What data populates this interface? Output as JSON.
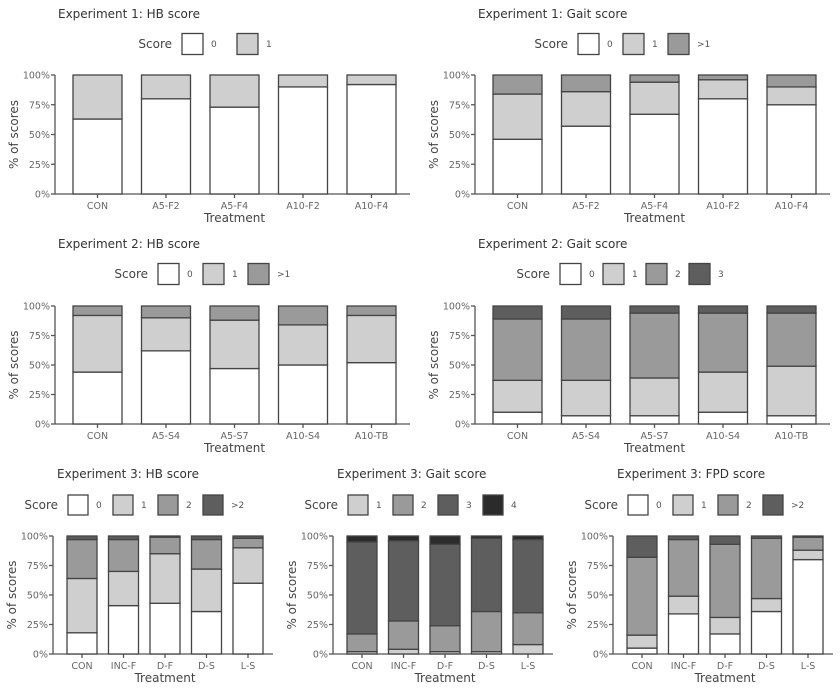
{
  "figure": {
    "colors": {
      "white": "#ffffff",
      "light": "#cfcfcf",
      "medium": "#9a9a9a",
      "dark": "#5e5e5e",
      "darkest": "#2b2b2b"
    }
  },
  "chart_data": [
    {
      "type": "bar",
      "stacked": true,
      "title": "Experiment 1: HB score",
      "legend_title": "Score",
      "legend_position": "top",
      "xlabel": "Treatment",
      "ylabel": "% of scores",
      "ylim": [
        0,
        100
      ],
      "yticks": [
        "0%",
        "25%",
        "50%",
        "75%",
        "100%"
      ],
      "categories": [
        "CON",
        "A5-F2",
        "A5-F4",
        "A10-F2",
        "A10-F4"
      ],
      "series": [
        {
          "name": "0",
          "color": "white",
          "values": [
            63,
            80,
            73,
            90,
            92
          ]
        },
        {
          "name": "1",
          "color": "light",
          "values": [
            37,
            20,
            27,
            10,
            8
          ]
        }
      ]
    },
    {
      "type": "bar",
      "stacked": true,
      "title": "Experiment 1: Gait score",
      "legend_title": "Score",
      "legend_position": "top",
      "xlabel": "Treatment",
      "ylabel": "% of scores",
      "ylim": [
        0,
        100
      ],
      "yticks": [
        "0%",
        "25%",
        "50%",
        "75%",
        "100%"
      ],
      "categories": [
        "CON",
        "A5-F2",
        "A5-F4",
        "A10-F2",
        "A10-F4"
      ],
      "series": [
        {
          "name": "0",
          "color": "white",
          "values": [
            46,
            57,
            67,
            80,
            75
          ]
        },
        {
          "name": "1",
          "color": "light",
          "values": [
            38,
            29,
            27,
            16,
            15
          ]
        },
        {
          "name": ">1",
          "color": "medium",
          "values": [
            16,
            14,
            6,
            4,
            10
          ]
        }
      ]
    },
    {
      "type": "bar",
      "stacked": true,
      "title": "Experiment 2: HB score",
      "legend_title": "Score",
      "legend_position": "top",
      "xlabel": "Treatment",
      "ylabel": "% of scores",
      "ylim": [
        0,
        100
      ],
      "yticks": [
        "0%",
        "25%",
        "50%",
        "75%",
        "100%"
      ],
      "categories": [
        "CON",
        "A5-S4",
        "A5-S7",
        "A10-S4",
        "A10-TB"
      ],
      "series": [
        {
          "name": "0",
          "color": "white",
          "values": [
            44,
            62,
            47,
            50,
            52
          ]
        },
        {
          "name": "1",
          "color": "light",
          "values": [
            48,
            28,
            41,
            34,
            40
          ]
        },
        {
          "name": ">1",
          "color": "medium",
          "values": [
            8,
            10,
            12,
            16,
            8
          ]
        }
      ]
    },
    {
      "type": "bar",
      "stacked": true,
      "title": "Experiment 2: Gait score",
      "legend_title": "Score",
      "legend_position": "top",
      "xlabel": "Treatment",
      "ylabel": "% of scores",
      "ylim": [
        0,
        100
      ],
      "yticks": [
        "0%",
        "25%",
        "50%",
        "75%",
        "100%"
      ],
      "categories": [
        "CON",
        "A5-S4",
        "A5-S7",
        "A10-S4",
        "A10-TB"
      ],
      "series": [
        {
          "name": "0",
          "color": "white",
          "values": [
            10,
            7,
            7,
            10,
            7
          ]
        },
        {
          "name": "1",
          "color": "light",
          "values": [
            27,
            30,
            32,
            34,
            42
          ]
        },
        {
          "name": "2",
          "color": "medium",
          "values": [
            52,
            52,
            55,
            50,
            45
          ]
        },
        {
          "name": "3",
          "color": "dark",
          "values": [
            11,
            11,
            6,
            6,
            6
          ]
        }
      ]
    },
    {
      "type": "bar",
      "stacked": true,
      "title": "Experiment 3: HB score",
      "legend_title": "Score",
      "legend_position": "top",
      "xlabel": "Treatment",
      "ylabel": "% of scores",
      "ylim": [
        0,
        100
      ],
      "yticks": [
        "0%",
        "25%",
        "50%",
        "75%",
        "100%"
      ],
      "categories": [
        "CON",
        "INC-F",
        "D-F",
        "D-S",
        "L-S"
      ],
      "series": [
        {
          "name": "0",
          "color": "white",
          "values": [
            18,
            41,
            43,
            36,
            60
          ]
        },
        {
          "name": "1",
          "color": "light",
          "values": [
            46,
            29,
            42,
            36,
            30
          ]
        },
        {
          "name": "2",
          "color": "medium",
          "values": [
            33,
            27,
            14,
            25,
            8
          ]
        },
        {
          "name": ">2",
          "color": "dark",
          "values": [
            3,
            3,
            1,
            3,
            2
          ]
        }
      ]
    },
    {
      "type": "bar",
      "stacked": true,
      "title": "Experiment 3: Gait score",
      "legend_title": "Score",
      "legend_position": "top",
      "xlabel": "Treatment",
      "ylabel": "% of scores",
      "ylim": [
        0,
        100
      ],
      "yticks": [
        "0%",
        "25%",
        "50%",
        "75%",
        "100%"
      ],
      "categories": [
        "CON",
        "INC-F",
        "D-F",
        "D-S",
        "L-S"
      ],
      "series": [
        {
          "name": "1",
          "color": "light",
          "values": [
            2,
            4,
            2,
            2,
            8
          ]
        },
        {
          "name": "2",
          "color": "medium",
          "values": [
            15,
            24,
            22,
            34,
            27
          ]
        },
        {
          "name": "3",
          "color": "dark",
          "values": [
            78,
            68,
            69,
            62,
            62
          ]
        },
        {
          "name": "4",
          "color": "darkest",
          "values": [
            5,
            4,
            7,
            2,
            3
          ]
        }
      ]
    },
    {
      "type": "bar",
      "stacked": true,
      "title": "Experiment 3: FPD score",
      "legend_title": "Score",
      "legend_position": "top",
      "xlabel": "Treatment",
      "ylabel": "% of scores",
      "ylim": [
        0,
        100
      ],
      "yticks": [
        "0%",
        "25%",
        "50%",
        "75%",
        "100%"
      ],
      "categories": [
        "CON",
        "INC-F",
        "D-F",
        "D-S",
        "L-S"
      ],
      "series": [
        {
          "name": "0",
          "color": "white",
          "values": [
            5,
            34,
            17,
            36,
            80
          ]
        },
        {
          "name": "1",
          "color": "light",
          "values": [
            11,
            15,
            14,
            11,
            8
          ]
        },
        {
          "name": "2",
          "color": "medium",
          "values": [
            66,
            48,
            62,
            51,
            11
          ]
        },
        {
          "name": ">2",
          "color": "dark",
          "values": [
            18,
            3,
            7,
            2,
            1
          ]
        }
      ]
    }
  ]
}
